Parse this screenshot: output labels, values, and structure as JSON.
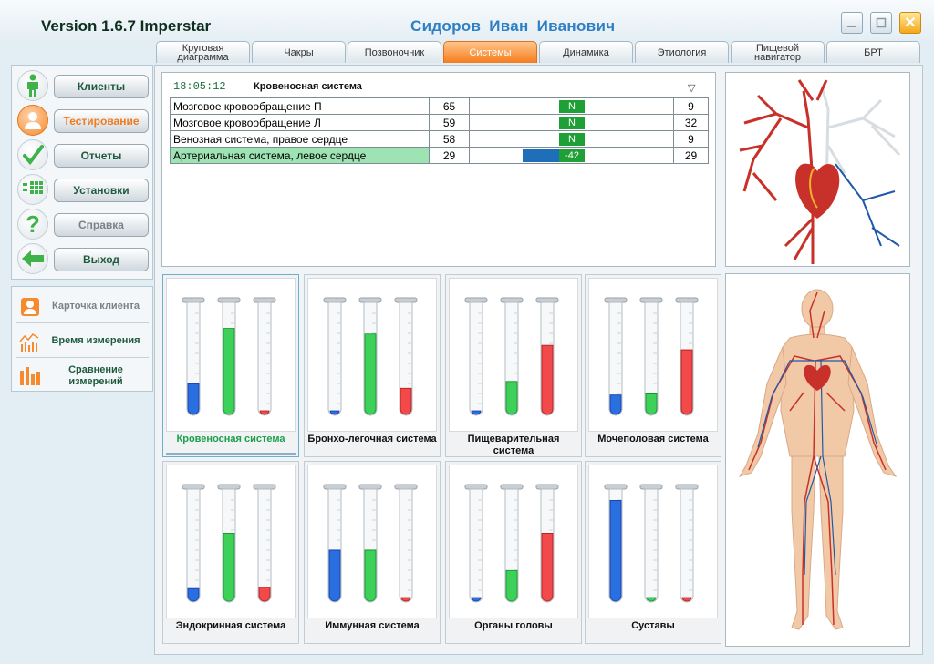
{
  "app": {
    "version_title": "Version 1.6.7 Imperstar",
    "user_name": "Сидоров Иван Иванович"
  },
  "tabs": [
    {
      "label": "Круговая диаграмма"
    },
    {
      "label": "Чакры"
    },
    {
      "label": "Позвоночник"
    },
    {
      "label": "Системы",
      "active": true
    },
    {
      "label": "Динамика"
    },
    {
      "label": "Этиология"
    },
    {
      "label": "Пищевой навигатор"
    },
    {
      "label": "БРТ"
    }
  ],
  "nav": [
    {
      "label": "Клиенты",
      "icon": "person-icon"
    },
    {
      "label": "Тестирование",
      "icon": "user-orange-icon",
      "active": true
    },
    {
      "label": "Отчеты",
      "icon": "check-icon"
    },
    {
      "label": "Установки",
      "icon": "grid-icon"
    },
    {
      "label": "Справка",
      "icon": "question-icon",
      "disabled": true
    },
    {
      "label": "Выход",
      "icon": "exit-arrow-icon"
    }
  ],
  "sidebar2": [
    {
      "label": "Карточка клиента",
      "icon": "client-card-icon",
      "disabled": true
    },
    {
      "label": "Время измерения",
      "icon": "measurement-time-icon"
    },
    {
      "label": "Сравнение измерений",
      "icon": "compare-icon"
    }
  ],
  "panel": {
    "time": "18:05:12",
    "system_title": "Кровеносная система",
    "dropdown_icon": "triangle-down-icon",
    "rows": [
      {
        "name": "Мозговое кровообращение П",
        "v1": "65",
        "status": "N",
        "v2": "9"
      },
      {
        "name": "Мозговое кровообращение Л",
        "v1": "59",
        "status": "N",
        "v2": "32"
      },
      {
        "name": "Венозная система, правое сердце",
        "v1": "58",
        "status": "N",
        "v2": "9"
      },
      {
        "name": "Артериальная система, левое сердце",
        "v1": "29",
        "status": "-42",
        "v2": "29",
        "selected": true
      }
    ]
  },
  "systems": [
    {
      "label": "Кровеносная система",
      "levels": {
        "blue": 0.28,
        "green": 0.77,
        "red": 0.0
      },
      "active": true
    },
    {
      "label": "Бронхо-легочная система",
      "levels": {
        "blue": 0.0,
        "green": 0.72,
        "red": 0.24
      }
    },
    {
      "label": "Пищеварительная система",
      "levels": {
        "blue": 0.0,
        "green": 0.3,
        "red": 0.62
      }
    },
    {
      "label": "Мочеполовая система",
      "levels": {
        "blue": 0.18,
        "green": 0.19,
        "red": 0.58
      }
    },
    {
      "label": "Эндокринная система",
      "levels": {
        "blue": 0.12,
        "green": 0.61,
        "red": 0.13
      }
    },
    {
      "label": "Иммунная система",
      "levels": {
        "blue": 0.46,
        "green": 0.46,
        "red": 0.0
      }
    },
    {
      "label": "Органы головы",
      "levels": {
        "blue": 0.0,
        "green": 0.28,
        "red": 0.61
      }
    },
    {
      "label": "Суставы",
      "levels": {
        "blue": 0.9,
        "green": 0.0,
        "red": 0.0
      }
    }
  ],
  "colors": {
    "accent": "#f57c1e",
    "title_blue": "#2e7fc4",
    "green_text": "#1ba04a"
  }
}
